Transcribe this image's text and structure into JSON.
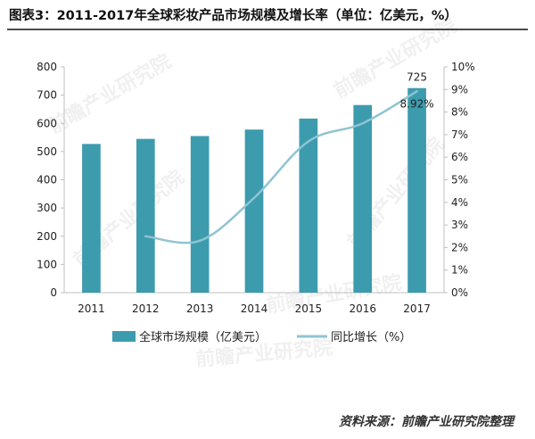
{
  "title": "图表3：2011-2017年全球彩妆产品市场规模及增长率（单位：亿美元，%）",
  "watermark": "前瞻产业研究院",
  "source": "资料来源：前瞻产业研究院整理",
  "colors": {
    "bar": "#3D9BAE",
    "line": "#8FC4D2",
    "axis": "#bfbfbf",
    "text": "#222222",
    "rule": "#4a4a4a"
  },
  "chart_data": {
    "type": "bar",
    "categories": [
      "2011",
      "2012",
      "2013",
      "2014",
      "2015",
      "2016",
      "2017"
    ],
    "series": [
      {
        "name": "全球市场规模（亿美元）",
        "type": "bar",
        "axis": "left",
        "values": [
          527,
          545,
          555,
          578,
          617,
          665,
          725
        ]
      },
      {
        "name": "同比增长（%）",
        "type": "line",
        "axis": "right",
        "values": [
          null,
          2.5,
          2.3,
          4.2,
          6.7,
          7.5,
          8.92
        ]
      }
    ],
    "data_labels": [
      {
        "series": 0,
        "index": 6,
        "text": "725"
      },
      {
        "series": 1,
        "index": 6,
        "text": "8.92%"
      }
    ],
    "ylim_left": [
      0,
      800
    ],
    "yticks_left": [
      "0",
      "100",
      "200",
      "300",
      "400",
      "500",
      "600",
      "700",
      "800"
    ],
    "ylim_right": [
      0,
      10
    ],
    "yticks_right": [
      "0%",
      "1%",
      "2%",
      "3%",
      "4%",
      "5%",
      "6%",
      "7%",
      "8%",
      "9%",
      "10%"
    ],
    "grid": false,
    "legend_position": "bottom"
  }
}
